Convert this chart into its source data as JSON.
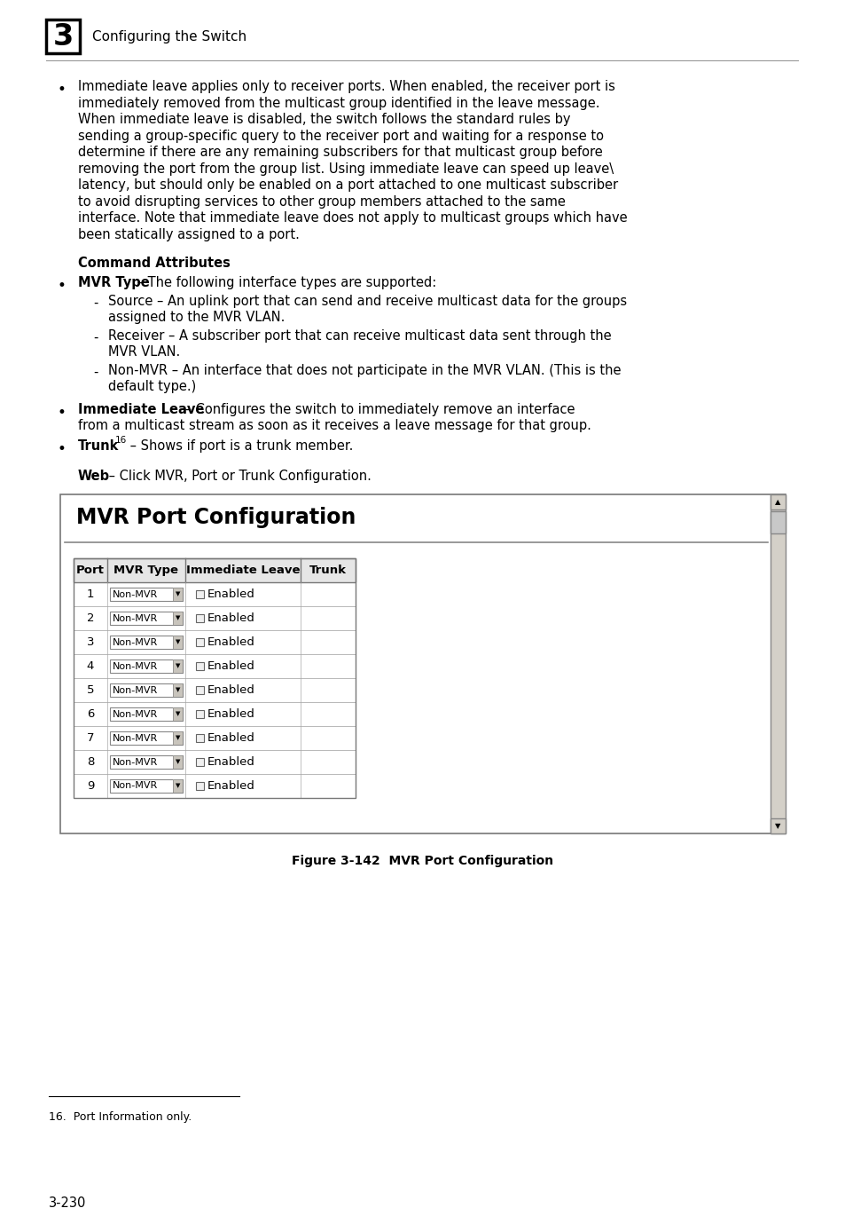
{
  "page_bg": "#ffffff",
  "header_number": "3",
  "header_text": "Configuring the Switch",
  "text_color": "#000000",
  "panel_title": "MVR Port Configuration",
  "table_headers": [
    "Port",
    "MVR Type",
    "Immediate Leave",
    "Trunk"
  ],
  "table_rows": [
    [
      "1",
      "Non-MVR",
      "Enabled",
      ""
    ],
    [
      "2",
      "Non-MVR",
      "Enabled",
      ""
    ],
    [
      "3",
      "Non-MVR",
      "Enabled",
      ""
    ],
    [
      "4",
      "Non-MVR",
      "Enabled",
      ""
    ],
    [
      "5",
      "Non-MVR",
      "Enabled",
      ""
    ],
    [
      "6",
      "Non-MVR",
      "Enabled",
      ""
    ],
    [
      "7",
      "Non-MVR",
      "Enabled",
      ""
    ],
    [
      "8",
      "Non-MVR",
      "Enabled",
      ""
    ],
    [
      "9",
      "Non-MVR",
      "Enabled",
      ""
    ]
  ],
  "fig_caption": "Figure 3-142  MVR Port Configuration",
  "footnote_text": "16.  Port Information only.",
  "page_num": "3-230"
}
